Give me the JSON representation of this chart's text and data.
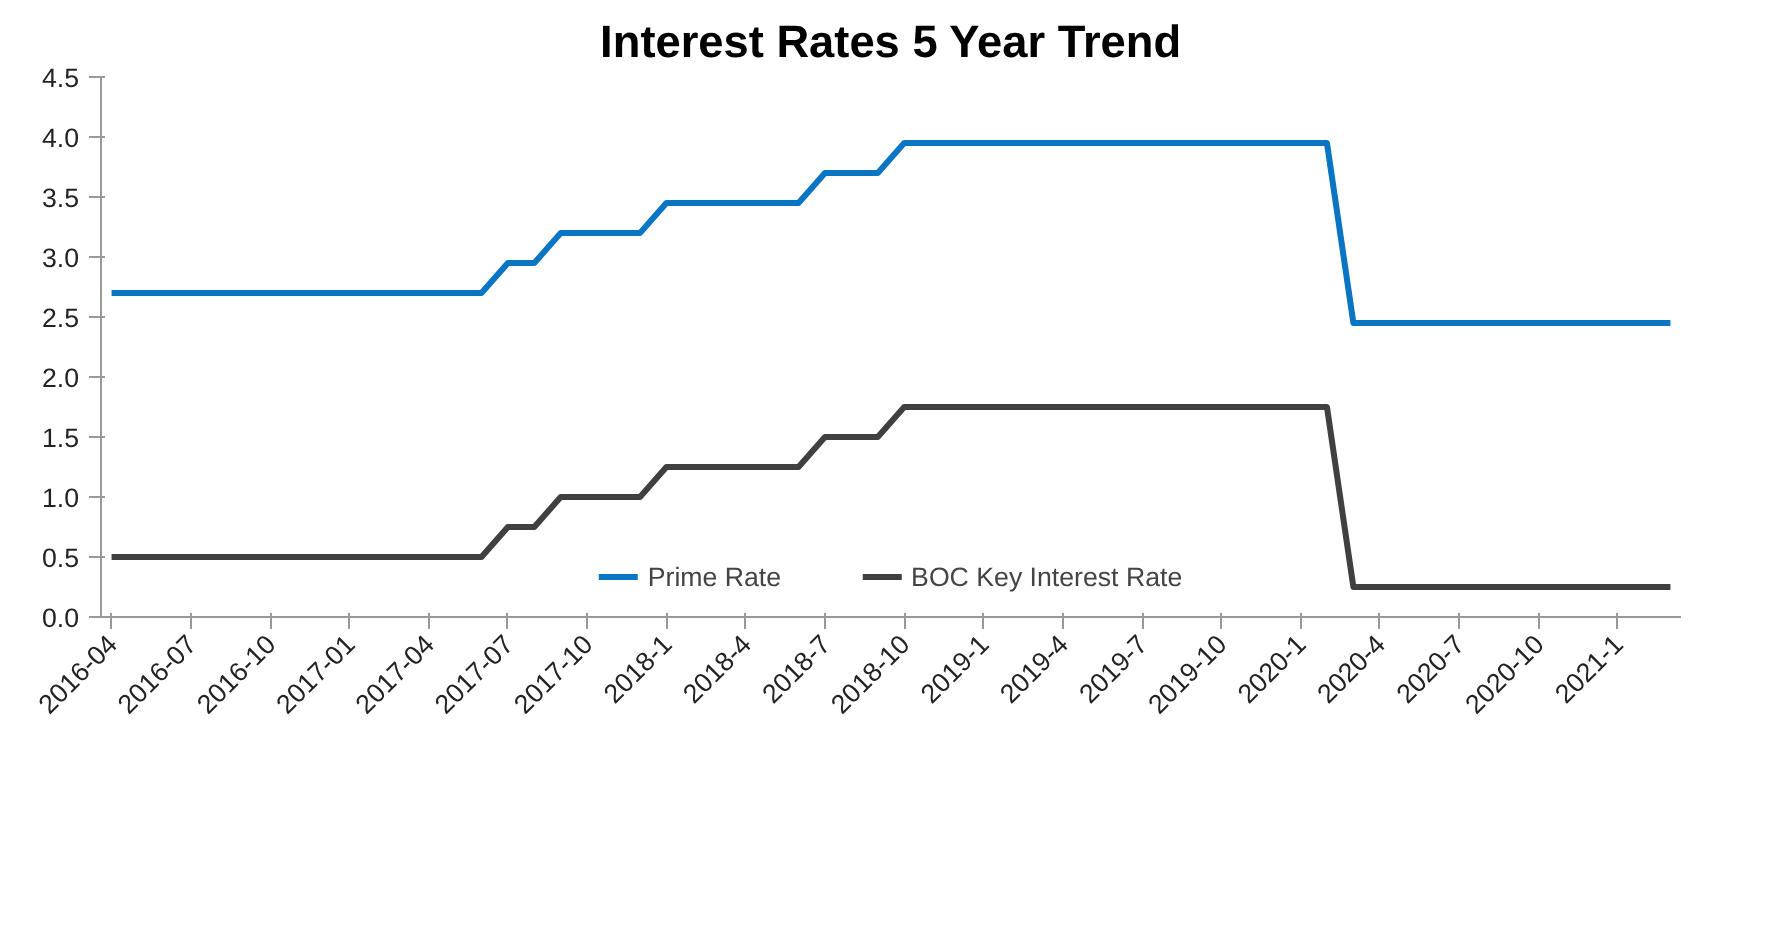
{
  "chart_data": {
    "type": "line",
    "title": "Interest Rates 5 Year Trend",
    "categories": [
      "2016-04",
      null,
      null,
      "2016-07",
      null,
      null,
      "2016-10",
      null,
      null,
      "2017-01",
      null,
      null,
      "2017-04",
      null,
      null,
      "2017-07",
      null,
      null,
      "2017-10",
      null,
      null,
      "2018-1",
      null,
      null,
      "2018-4",
      null,
      null,
      "2018-7",
      null,
      null,
      "2018-10",
      null,
      null,
      "2019-1",
      null,
      null,
      "2019-4",
      null,
      null,
      "2019-7",
      null,
      null,
      "2019-10",
      null,
      null,
      "2020-1",
      null,
      null,
      "2020-4",
      null,
      null,
      "2020-7",
      null,
      null,
      "2020-10",
      null,
      null,
      "2021-1",
      null,
      null
    ],
    "series": [
      {
        "name": "Prime Rate",
        "color": "#0a75c2",
        "values": [
          2.7,
          2.7,
          2.7,
          2.7,
          2.7,
          2.7,
          2.7,
          2.7,
          2.7,
          2.7,
          2.7,
          2.7,
          2.7,
          2.7,
          2.7,
          2.95,
          2.95,
          3.2,
          3.2,
          3.2,
          3.2,
          3.45,
          3.45,
          3.45,
          3.45,
          3.45,
          3.45,
          3.7,
          3.7,
          3.7,
          3.95,
          3.95,
          3.95,
          3.95,
          3.95,
          3.95,
          3.95,
          3.95,
          3.95,
          3.95,
          3.95,
          3.95,
          3.95,
          3.95,
          3.95,
          3.95,
          3.95,
          2.45,
          2.45,
          2.45,
          2.45,
          2.45,
          2.45,
          2.45,
          2.45,
          2.45,
          2.45,
          2.45,
          2.45,
          2.45
        ]
      },
      {
        "name": "BOC Key Interest Rate",
        "color": "#404040",
        "values": [
          0.5,
          0.5,
          0.5,
          0.5,
          0.5,
          0.5,
          0.5,
          0.5,
          0.5,
          0.5,
          0.5,
          0.5,
          0.5,
          0.5,
          0.5,
          0.75,
          0.75,
          1.0,
          1.0,
          1.0,
          1.0,
          1.25,
          1.25,
          1.25,
          1.25,
          1.25,
          1.25,
          1.5,
          1.5,
          1.5,
          1.75,
          1.75,
          1.75,
          1.75,
          1.75,
          1.75,
          1.75,
          1.75,
          1.75,
          1.75,
          1.75,
          1.75,
          1.75,
          1.75,
          1.75,
          1.75,
          1.75,
          0.25,
          0.25,
          0.25,
          0.25,
          0.25,
          0.25,
          0.25,
          0.25,
          0.25,
          0.25,
          0.25,
          0.25,
          0.25
        ]
      }
    ],
    "ylim": [
      0,
      4.5
    ],
    "yticks": [
      {
        "value": 0,
        "label": "0.0"
      },
      {
        "value": 0.5,
        "label": "0.5"
      },
      {
        "value": 1,
        "label": "1.0"
      },
      {
        "value": 1.5,
        "label": "1.5"
      },
      {
        "value": 2,
        "label": "2.0"
      },
      {
        "value": 2.5,
        "label": "2.5"
      },
      {
        "value": 3,
        "label": "3.0"
      },
      {
        "value": 3.5,
        "label": "3.5"
      },
      {
        "value": 4,
        "label": "4.0"
      },
      {
        "value": 4.5,
        "label": "4.5"
      }
    ],
    "grid": false,
    "legend": "bottom",
    "marker": "none",
    "line_style": "solid"
  }
}
